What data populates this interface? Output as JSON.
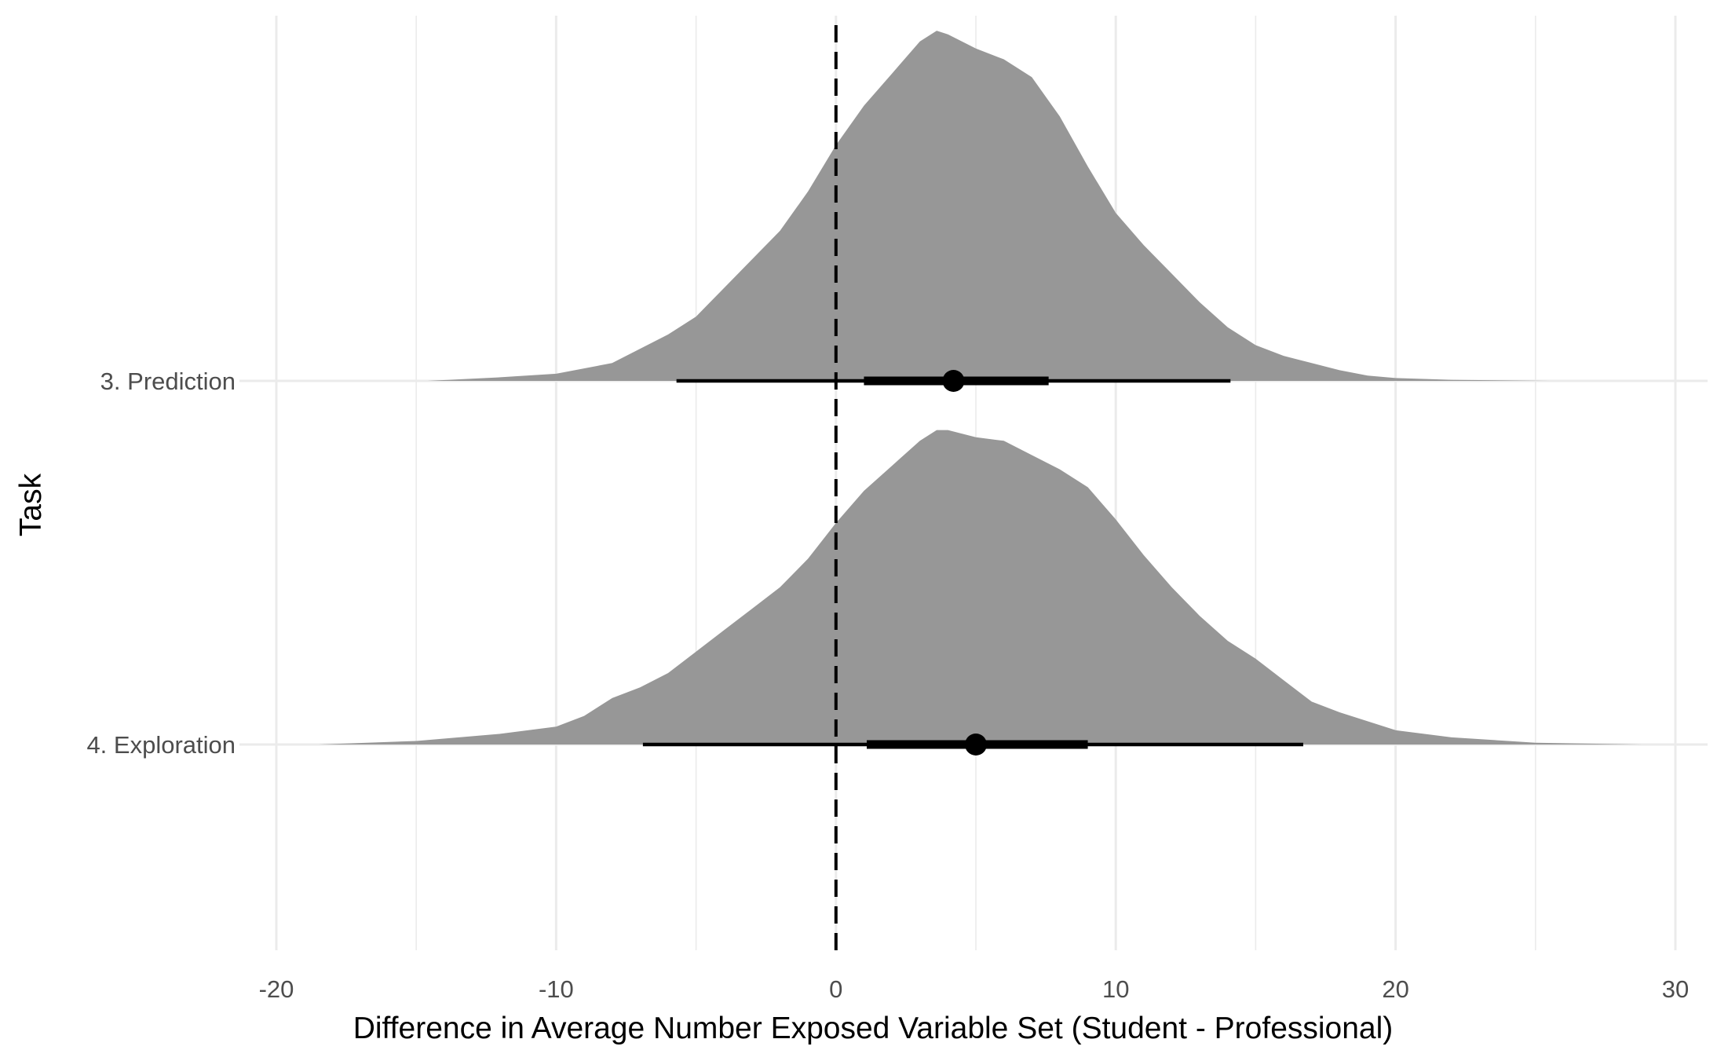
{
  "chart_data": {
    "type": "area",
    "xlabel": "Difference in Average Number Exposed Variable Set (Student - Professional)",
    "ylabel": "Task",
    "xlim": [
      -20,
      30
    ],
    "x_ticks": [
      "-20",
      "-10",
      "0",
      "10",
      "20",
      "30"
    ],
    "x_tick_values": [
      -20,
      -10,
      0,
      10,
      20,
      30
    ],
    "reference_line": {
      "x": 0,
      "style": "dashed"
    },
    "grid": true,
    "legend": "none",
    "colors": {
      "density_fill": "#979797",
      "interval": "#000000",
      "grid": "#ebebeb"
    },
    "series": [
      {
        "name": "3. Prediction",
        "density": {
          "x": [
            -14.6,
            -12,
            -10,
            -8,
            -6,
            -5,
            -4,
            -3,
            -2,
            -1,
            0,
            1,
            2,
            3,
            3.6,
            4,
            5,
            6,
            7,
            8,
            9,
            10,
            11,
            12,
            13,
            14,
            15,
            16,
            17,
            18,
            19,
            20,
            22,
            25.5
          ],
          "y": [
            0.0,
            0.01,
            0.02,
            0.05,
            0.13,
            0.18,
            0.26,
            0.34,
            0.42,
            0.53,
            0.66,
            0.77,
            0.86,
            0.95,
            0.98,
            0.97,
            0.93,
            0.9,
            0.85,
            0.74,
            0.6,
            0.47,
            0.38,
            0.3,
            0.22,
            0.15,
            0.1,
            0.07,
            0.05,
            0.03,
            0.015,
            0.008,
            0.003,
            0.0
          ]
        },
        "median": 4.2,
        "interval_inner": [
          1.0,
          7.6
        ],
        "interval_outer": [
          -5.7,
          14.1
        ]
      },
      {
        "name": "4. Exploration",
        "density": {
          "x": [
            -18.5,
            -15,
            -12,
            -10,
            -9,
            -8,
            -7,
            -6,
            -5,
            -4,
            -3,
            -2,
            -1,
            0,
            1,
            2,
            3,
            3.6,
            4,
            5,
            6,
            7,
            8,
            9,
            10,
            11,
            12,
            13,
            14,
            15,
            16,
            17,
            18,
            20,
            22,
            25,
            28.8
          ],
          "y": [
            0.0,
            0.01,
            0.03,
            0.05,
            0.08,
            0.13,
            0.16,
            0.2,
            0.26,
            0.32,
            0.38,
            0.44,
            0.52,
            0.62,
            0.71,
            0.78,
            0.85,
            0.88,
            0.88,
            0.86,
            0.85,
            0.81,
            0.77,
            0.72,
            0.63,
            0.53,
            0.44,
            0.36,
            0.29,
            0.24,
            0.18,
            0.12,
            0.09,
            0.04,
            0.02,
            0.005,
            0.0
          ]
        },
        "median": 5.0,
        "interval_inner": [
          1.1,
          9.0
        ],
        "interval_outer": [
          -6.9,
          16.7
        ]
      }
    ]
  }
}
